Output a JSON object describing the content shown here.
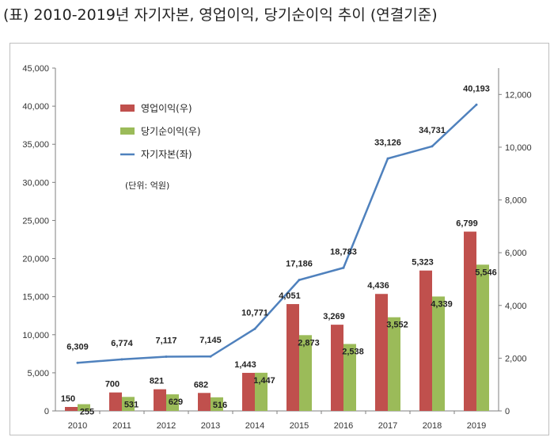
{
  "title": "(표) 2010-2019년 자기자본, 영업이익, 당기순이익 추이 (연결기준)",
  "chart_data": {
    "type": "bar",
    "categories": [
      "2010",
      "2011",
      "2012",
      "2013",
      "2014",
      "2015",
      "2016",
      "2017",
      "2018",
      "2019"
    ],
    "series": [
      {
        "name": "영업이익(우)",
        "type": "bar",
        "axis": "right",
        "color": "#c0504d",
        "values": [
          150,
          700,
          821,
          682,
          1443,
          4051,
          3269,
          4436,
          5323,
          6799
        ],
        "labels": [
          "150",
          "700",
          "821",
          "682",
          "1,443",
          "4,051",
          "3,269",
          "4,436",
          "5,323",
          "6,799"
        ]
      },
      {
        "name": "당기순이익(우)",
        "type": "bar",
        "axis": "right",
        "color": "#9bbb59",
        "values": [
          255,
          531,
          629,
          516,
          1447,
          2873,
          2538,
          3552,
          4339,
          5546
        ],
        "labels": [
          "255",
          "531",
          "629",
          "516",
          "1,447",
          "2,873",
          "2,538",
          "3,552",
          "4,339",
          "5,546"
        ]
      },
      {
        "name": "자기자본(좌)",
        "type": "line",
        "axis": "left",
        "color": "#4f81bd",
        "values": [
          6309,
          6774,
          7117,
          7145,
          10771,
          17186,
          18783,
          33126,
          34731,
          40193
        ],
        "labels": [
          "6,309",
          "6,774",
          "7,117",
          "7,145",
          "10,771",
          "17,186",
          "18,783",
          "33,126",
          "34,731",
          "40,193"
        ]
      }
    ],
    "left_axis": {
      "ylim": [
        0,
        45000
      ],
      "ticks": [
        "0",
        "5,000",
        "10,000",
        "15,000",
        "20,000",
        "25,000",
        "30,000",
        "35,000",
        "40,000",
        "45,000"
      ]
    },
    "right_axis": {
      "ylim": [
        0,
        13000
      ],
      "ticks": [
        "0",
        "2,000",
        "4,000",
        "6,000",
        "8,000",
        "10,000",
        "12,000"
      ]
    },
    "note": "(단위: 억원)",
    "legend_placement": "top-left",
    "grid": false
  }
}
